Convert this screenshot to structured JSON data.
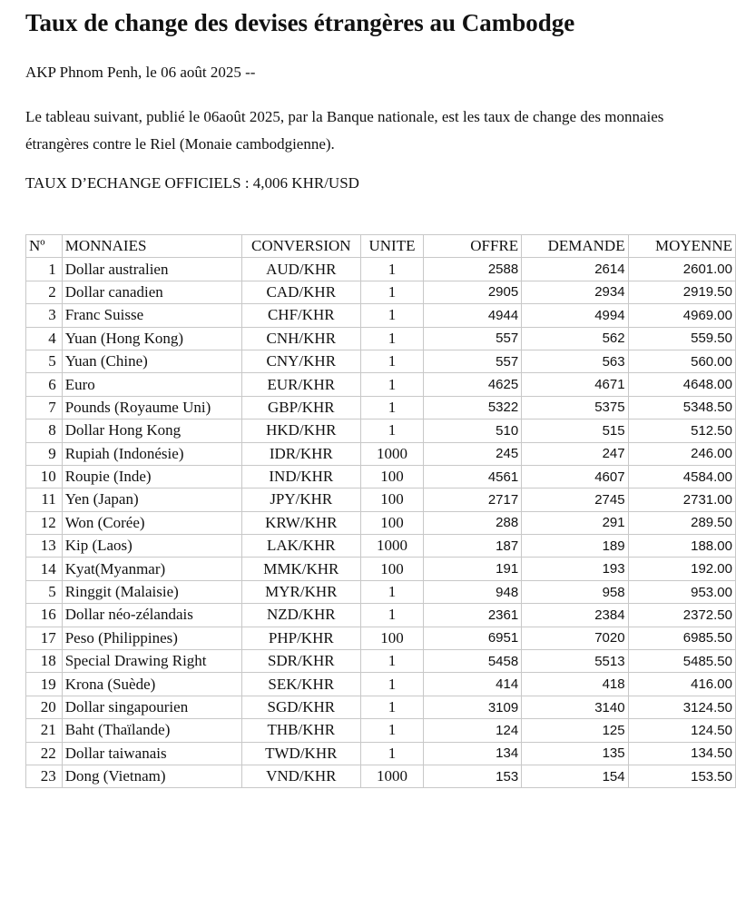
{
  "title": "Taux de change des devises étrangères au Cambodge",
  "dateline": "AKP Phnom Penh, le 06 août 2025 --",
  "intro": "Le tableau suivant, publié  le 06août 2025, par la Banque nationale, est les taux de change des monnaies étrangères contre le Riel (Monaie cambodgienne).",
  "official_rate": "TAUX D’ECHANGE OFFICIELS :   4,006 KHR/USD",
  "table": {
    "headers": [
      "Nº",
      "MONNAIES",
      "CONVERSION",
      "UNITE",
      "OFFRE",
      "DEMANDE",
      "MOYENNE"
    ],
    "rows": [
      [
        "1",
        "Dollar australien",
        "AUD/KHR",
        "1",
        "2588",
        "2614",
        "2601.00"
      ],
      [
        "2",
        "Dollar canadien",
        "CAD/KHR",
        "1",
        "2905",
        "2934",
        "2919.50"
      ],
      [
        "3",
        "Franc Suisse",
        "CHF/KHR",
        "1",
        "4944",
        "4994",
        "4969.00"
      ],
      [
        "4",
        "Yuan (Hong Kong)",
        "CNH/KHR",
        "1",
        "557",
        "562",
        "559.50"
      ],
      [
        "5",
        "Yuan (Chine)",
        "CNY/KHR",
        "1",
        "557",
        "563",
        "560.00"
      ],
      [
        "6",
        "Euro",
        "EUR/KHR",
        "1",
        "4625",
        "4671",
        "4648.00"
      ],
      [
        "7",
        "Pounds (Royaume Uni)",
        "GBP/KHR",
        "1",
        "5322",
        "5375",
        "5348.50"
      ],
      [
        "8",
        "Dollar Hong Kong",
        "HKD/KHR",
        "1",
        "510",
        "515",
        "512.50"
      ],
      [
        "9",
        "Rupiah (Indonésie)",
        "IDR/KHR",
        "1000",
        "245",
        "247",
        "246.00"
      ],
      [
        "10",
        "Roupie (Inde)",
        "IND/KHR",
        "100",
        "4561",
        "4607",
        "4584.00"
      ],
      [
        "11",
        "Yen (Japan)",
        "JPY/KHR",
        "100",
        "2717",
        "2745",
        "2731.00"
      ],
      [
        "12",
        "Won (Corée)",
        "KRW/KHR",
        "100",
        "288",
        "291",
        "289.50"
      ],
      [
        "13",
        "Kip (Laos)",
        "LAK/KHR",
        "1000",
        "187",
        "189",
        "188.00"
      ],
      [
        "14",
        "Kyat(Myanmar)",
        "MMK/KHR",
        "100",
        "191",
        "193",
        "192.00"
      ],
      [
        "5",
        "Ringgit (Malaisie)",
        "MYR/KHR",
        "1",
        "948",
        "958",
        "953.00"
      ],
      [
        "16",
        "Dollar néo-zélandais",
        "NZD/KHR",
        "1",
        "2361",
        "2384",
        "2372.50"
      ],
      [
        "17",
        "Peso (Philippines)",
        "PHP/KHR",
        "100",
        "6951",
        "7020",
        "6985.50"
      ],
      [
        "18",
        "Special Drawing Right",
        "SDR/KHR",
        "1",
        "5458",
        "5513",
        "5485.50"
      ],
      [
        "19",
        "Krona (Suède)",
        "SEK/KHR",
        "1",
        "414",
        "418",
        "416.00"
      ],
      [
        "20",
        "Dollar singapourien",
        "SGD/KHR",
        "1",
        "3109",
        "3140",
        "3124.50"
      ],
      [
        "21",
        "Baht (Thaïlande)",
        "THB/KHR",
        "1",
        "124",
        "125",
        "124.50"
      ],
      [
        "22",
        "Dollar taiwanais",
        "TWD/KHR",
        "1",
        "134",
        "135",
        "134.50"
      ],
      [
        "23",
        "Dong (Vietnam)",
        "VND/KHR",
        "1000",
        "153",
        "154",
        "153.50"
      ]
    ]
  }
}
